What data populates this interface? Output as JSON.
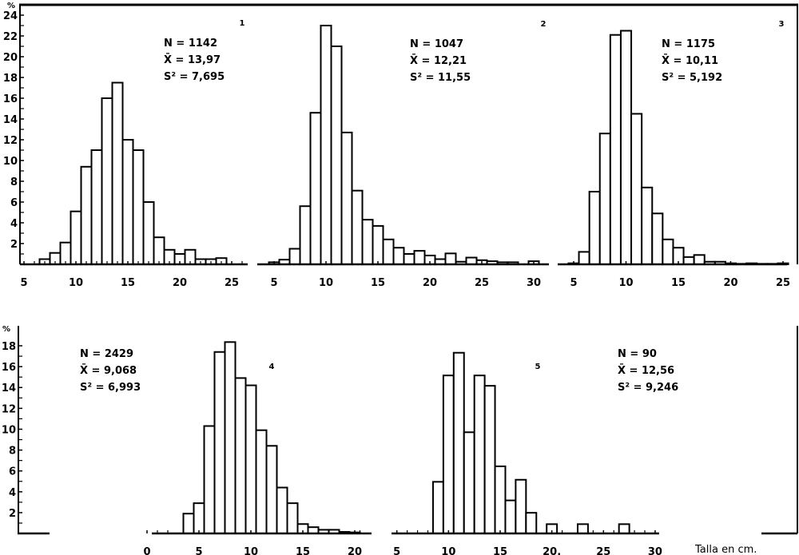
{
  "chart_data": [
    {
      "type": "bar",
      "panel": "1",
      "ylabel": "%",
      "xlabel": "",
      "ylim": [
        0,
        24
      ],
      "y_ticks": [
        "24",
        "22",
        "20",
        "18",
        "16",
        "14",
        "12",
        "10",
        "8",
        "6",
        "4",
        "2"
      ],
      "x_ticks": [
        "5",
        "10",
        "15",
        "20",
        "25"
      ],
      "stats": {
        "n": "N = 1142",
        "mean": "X̄ = 13,97",
        "var": "S² = 7,695"
      },
      "categories": [
        7,
        8,
        9,
        10,
        11,
        12,
        13,
        14,
        15,
        16,
        17,
        18,
        19,
        20,
        21,
        22,
        23,
        24
      ],
      "values": [
        0.5,
        1.1,
        2.1,
        5.1,
        9.4,
        11,
        16,
        17.5,
        12,
        11,
        6,
        2.6,
        1.4,
        1.0,
        1.4,
        0.5,
        0.5,
        0.6
      ]
    },
    {
      "type": "bar",
      "panel": "2",
      "xlabel": "",
      "ylim": [
        0,
        24
      ],
      "x_ticks": [
        "5",
        "10",
        "15",
        "20",
        "25",
        "30"
      ],
      "stats": {
        "n": "N = 1047",
        "mean": "X̄ = 12,21",
        "var": "S² = 11,55"
      },
      "categories": [
        5,
        6,
        7,
        8,
        9,
        10,
        11,
        12,
        13,
        14,
        15,
        16,
        17,
        18,
        19,
        20,
        21,
        22,
        23,
        24,
        25,
        26,
        27,
        28,
        30
      ],
      "values": [
        0.2,
        0.45,
        1.5,
        5.6,
        14.6,
        23,
        21,
        12.7,
        7.1,
        4.3,
        3.7,
        2.4,
        1.6,
        1.0,
        1.3,
        0.85,
        0.5,
        1.05,
        0.25,
        0.65,
        0.4,
        0.3,
        0.2,
        0.2,
        0.3
      ]
    },
    {
      "type": "bar",
      "panel": "3",
      "xlabel": "",
      "ylim": [
        0,
        24
      ],
      "x_ticks": [
        "5",
        "10",
        "15",
        "20",
        "25"
      ],
      "stats": {
        "n": "N = 1175",
        "mean": "X̄ = 10,11",
        "var": "S² = 5,192"
      },
      "categories": [
        5,
        6,
        7,
        8,
        9,
        10,
        11,
        12,
        13,
        14,
        15,
        16,
        17,
        18,
        19,
        20,
        21,
        22,
        23,
        24,
        25
      ],
      "values": [
        0.1,
        1.2,
        7,
        12.6,
        22.1,
        22.5,
        14.5,
        7.4,
        4.9,
        2.4,
        1.6,
        0.7,
        0.9,
        0.25,
        0.25,
        0.1,
        0.05,
        0.1,
        0.05,
        0.05,
        0.1
      ]
    },
    {
      "type": "bar",
      "panel": "4",
      "ylabel": "%",
      "xlabel": "",
      "ylim": [
        0,
        19
      ],
      "y_ticks": [
        "18",
        "16",
        "14",
        "12",
        "10",
        "8",
        "6",
        "4",
        "2"
      ],
      "x_ticks": [
        "0",
        "5",
        "10",
        "15",
        "20"
      ],
      "stats": {
        "n": "N = 2429",
        "mean": "X̄ = 9,068",
        "var": "S² = 6,993"
      },
      "categories": [
        4,
        5,
        6,
        7,
        8,
        9,
        10,
        11,
        12,
        13,
        14,
        15,
        16,
        17,
        18,
        19,
        20
      ],
      "values": [
        1.9,
        2.9,
        10.3,
        17.4,
        18.35,
        14.9,
        14.2,
        9.9,
        8.4,
        4.4,
        2.9,
        0.9,
        0.6,
        0.35,
        0.35,
        0.15,
        0.1
      ]
    },
    {
      "type": "bar",
      "panel": "5",
      "xlabel": "Talla en cm.",
      "ylim": [
        0,
        19
      ],
      "x_ticks": [
        "5",
        "10",
        "15",
        "20.",
        "25",
        "30"
      ],
      "stats": {
        "n": "N = 90",
        "mean": "X̄ = 12,56",
        "var": "S² = 9,246"
      },
      "categories": [
        9,
        10,
        11,
        12,
        13,
        14,
        15,
        16,
        17,
        18,
        20,
        23,
        27
      ],
      "values": [
        5.0,
        15.3,
        17.5,
        9.8,
        15.3,
        14.3,
        6.5,
        3.2,
        5.2,
        2.0,
        0.9,
        0.9,
        0.9
      ]
    }
  ]
}
